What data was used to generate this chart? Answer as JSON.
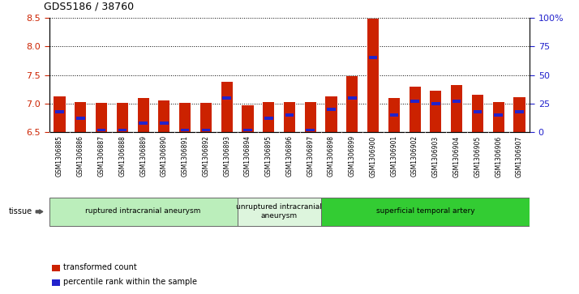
{
  "title": "GDS5186 / 38760",
  "samples": [
    "GSM1306885",
    "GSM1306886",
    "GSM1306887",
    "GSM1306888",
    "GSM1306889",
    "GSM1306890",
    "GSM1306891",
    "GSM1306892",
    "GSM1306893",
    "GSM1306894",
    "GSM1306895",
    "GSM1306896",
    "GSM1306897",
    "GSM1306898",
    "GSM1306899",
    "GSM1306900",
    "GSM1306901",
    "GSM1306902",
    "GSM1306903",
    "GSM1306904",
    "GSM1306905",
    "GSM1306906",
    "GSM1306907"
  ],
  "transformed_count": [
    7.13,
    7.03,
    7.02,
    7.01,
    7.1,
    7.05,
    7.02,
    7.02,
    7.38,
    6.97,
    7.03,
    7.03,
    7.03,
    7.13,
    7.48,
    8.48,
    7.1,
    7.3,
    7.22,
    7.32,
    7.16,
    7.03,
    7.11
  ],
  "percentile_rank": [
    18,
    12,
    2,
    2,
    8,
    8,
    2,
    2,
    30,
    2,
    12,
    15,
    2,
    20,
    30,
    65,
    15,
    27,
    25,
    27,
    18,
    15,
    18
  ],
  "y_min": 6.5,
  "y_max": 8.5,
  "y_ticks": [
    6.5,
    7.0,
    7.5,
    8.0,
    8.5
  ],
  "right_y_ticks": [
    0,
    25,
    50,
    75,
    100
  ],
  "right_y_labels": [
    "0",
    "25",
    "50",
    "75",
    "100%"
  ],
  "bar_color": "#cc2200",
  "blue_color": "#2222cc",
  "baseline": 6.5,
  "groups": [
    {
      "label": "ruptured intracranial aneurysm",
      "start": 0,
      "end": 9,
      "color": "#bbeebb"
    },
    {
      "label": "unruptured intracranial\naneurysm",
      "start": 9,
      "end": 13,
      "color": "#ddf5dd"
    },
    {
      "label": "superficial temporal artery",
      "start": 13,
      "end": 23,
      "color": "#33cc33"
    }
  ],
  "tissue_label": "tissue",
  "legend_items": [
    {
      "label": "transformed count",
      "color": "#cc2200"
    },
    {
      "label": "percentile rank within the sample",
      "color": "#2222cc"
    }
  ],
  "bar_width": 0.55,
  "xtick_bg": "#cccccc",
  "plot_bg": "#ffffff"
}
